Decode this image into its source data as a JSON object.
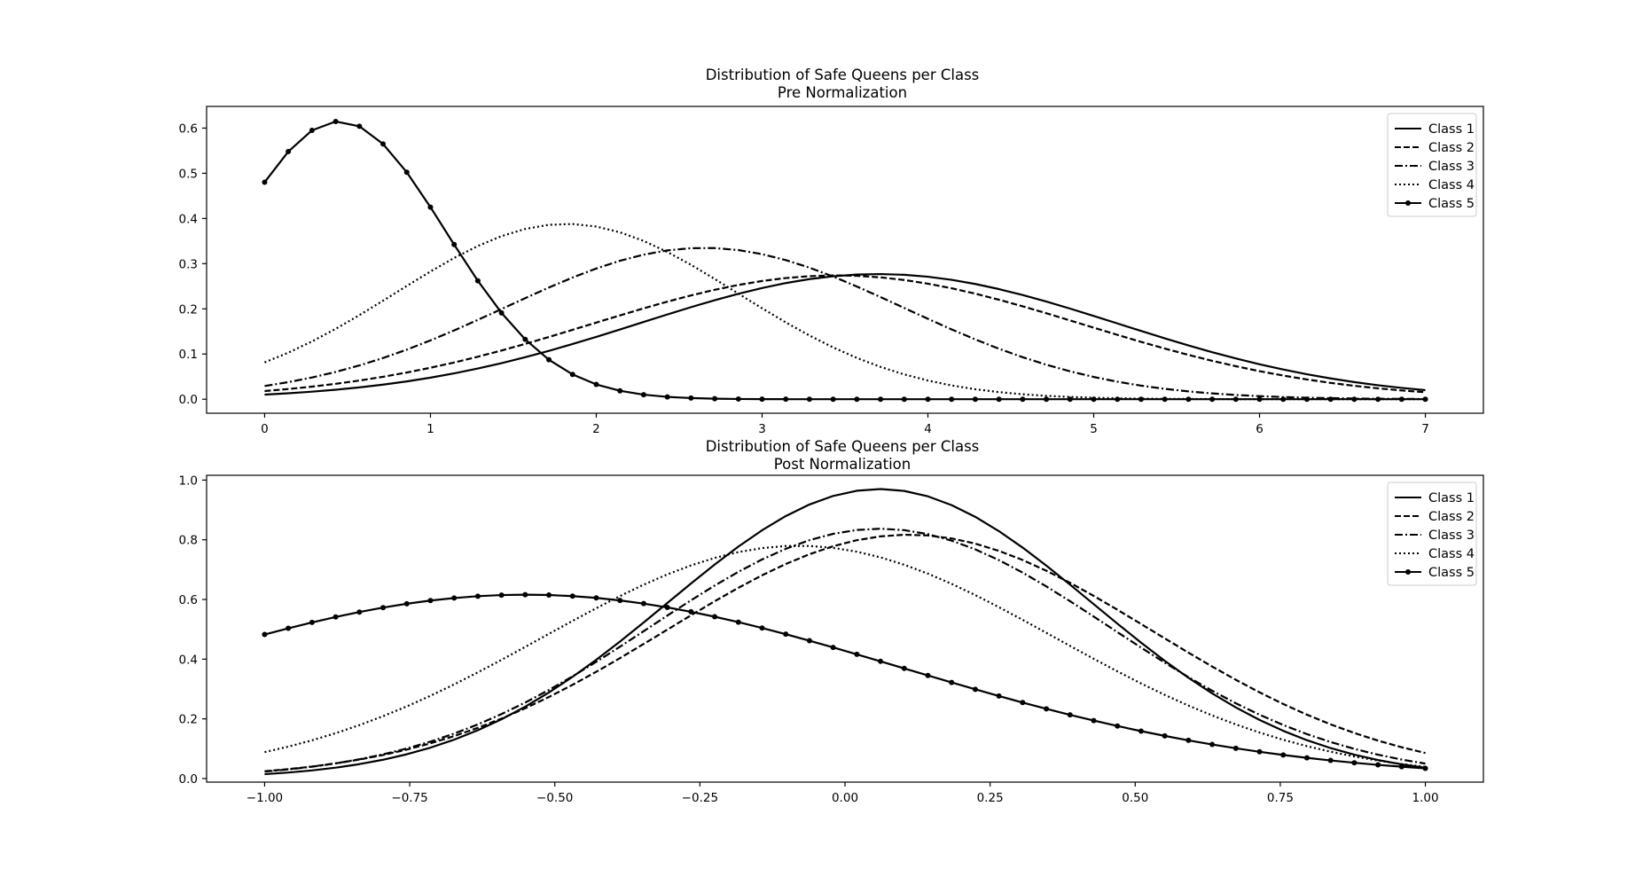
{
  "chart_data": [
    {
      "type": "line",
      "title": "Distribution of Safe Queens per Class",
      "subtitle": "Pre Normalization",
      "xlabel": "",
      "ylabel": "",
      "xlim": [
        -0.35,
        7.35
      ],
      "ylim": [
        -0.031,
        0.648
      ],
      "xticks": [
        0,
        1,
        2,
        3,
        4,
        5,
        6,
        7
      ],
      "xtick_labels": [
        "0",
        "1",
        "2",
        "3",
        "4",
        "5",
        "6",
        "7"
      ],
      "yticks": [
        0.0,
        0.1,
        0.2,
        0.3,
        0.4,
        0.5,
        0.6
      ],
      "ytick_labels": [
        "0.0",
        "0.1",
        "0.2",
        "0.3",
        "0.4",
        "0.5",
        "0.6"
      ],
      "grid": false,
      "legend_position": "top-right",
      "series": [
        {
          "name": "Class 1",
          "style": "solid",
          "marker": false,
          "distribution": {
            "kind": "gaussian",
            "mean": 3.7,
            "sd": 1.44,
            "peak": 0.277
          }
        },
        {
          "name": "Class 2",
          "style": "dashed",
          "marker": false,
          "distribution": {
            "kind": "gaussian",
            "mean": 3.45,
            "sd": 1.48,
            "peak": 0.274
          }
        },
        {
          "name": "Class 3",
          "style": "dashdot",
          "marker": false,
          "distribution": {
            "kind": "gaussian",
            "mean": 2.65,
            "sd": 1.2,
            "peak": 0.335
          }
        },
        {
          "name": "Class 4",
          "style": "dotted",
          "marker": false,
          "distribution": {
            "kind": "gaussian",
            "mean": 1.82,
            "sd": 1.03,
            "peak": 0.388
          }
        },
        {
          "name": "Class 5",
          "style": "solid",
          "marker": true,
          "distribution": {
            "kind": "gaussian",
            "mean": 0.45,
            "sd": 0.64,
            "peak": 0.615
          }
        }
      ],
      "x_range": [
        0,
        7
      ],
      "samples": 50
    },
    {
      "type": "line",
      "title": "Distribution of Safe Queens per Class",
      "subtitle": "Post Normalization",
      "xlabel": "",
      "ylabel": "",
      "xlim": [
        -1.1,
        1.1
      ],
      "ylim": [
        -0.012,
        1.016
      ],
      "xticks": [
        -1.0,
        -0.75,
        -0.5,
        -0.25,
        0.0,
        0.25,
        0.5,
        0.75,
        1.0
      ],
      "xtick_labels": [
        "−1.00",
        "−0.75",
        "−0.50",
        "−0.25",
        "0.00",
        "0.25",
        "0.50",
        "0.75",
        "1.00"
      ],
      "yticks": [
        0.0,
        0.2,
        0.4,
        0.6,
        0.8,
        1.0
      ],
      "ytick_labels": [
        "0.0",
        "0.2",
        "0.4",
        "0.6",
        "0.8",
        "1.0"
      ],
      "grid": false,
      "legend_position": "top-right",
      "series": [
        {
          "name": "Class 1",
          "style": "solid",
          "marker": false,
          "distribution": {
            "kind": "gaussian",
            "mean": 0.06,
            "sd": 0.366,
            "peak": 0.97
          }
        },
        {
          "name": "Class 2",
          "style": "dashed",
          "marker": false,
          "distribution": {
            "kind": "gaussian",
            "mean": 0.11,
            "sd": 0.419,
            "peak": 0.817
          }
        },
        {
          "name": "Class 3",
          "style": "dashdot",
          "marker": false,
          "distribution": {
            "kind": "gaussian",
            "mean": 0.06,
            "sd": 0.396,
            "peak": 0.837
          }
        },
        {
          "name": "Class 4",
          "style": "dotted",
          "marker": false,
          "distribution": {
            "kind": "gaussian",
            "mean": -0.08,
            "sd": 0.441,
            "peak": 0.78
          }
        },
        {
          "name": "Class 5",
          "style": "solid",
          "marker": true,
          "distribution": {
            "kind": "gaussian",
            "mean": -0.55,
            "sd": 0.644,
            "peak": 0.616
          }
        }
      ],
      "x_range": [
        -1,
        1
      ],
      "samples": 50
    }
  ],
  "colors": {
    "line": "#000000",
    "background": "#ffffff",
    "legend_border": "#cccccc"
  }
}
